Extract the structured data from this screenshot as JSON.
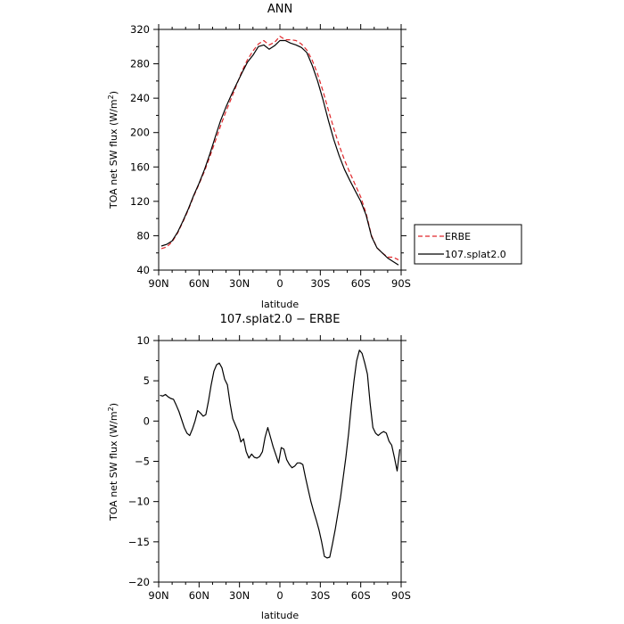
{
  "chart_data": [
    {
      "type": "line",
      "title": "ANN",
      "xlabel": "latitude",
      "ylabel": "TOA net SW flux (W/m²)",
      "xlim": [
        -90,
        90
      ],
      "ylim": [
        40,
        320
      ],
      "xticks": [
        -90,
        -60,
        -30,
        0,
        30,
        60,
        90
      ],
      "xtick_labels": [
        "90N",
        "60N",
        "30N",
        "0",
        "30S",
        "60S",
        "90S"
      ],
      "yticks": [
        40,
        80,
        120,
        160,
        200,
        240,
        280,
        320
      ],
      "ytick_labels": [
        "40",
        "80",
        "120",
        "160",
        "200",
        "240",
        "280",
        "320"
      ],
      "grid": false,
      "legend_position": "right-bottom-outside",
      "series": [
        {
          "name": "ERBE",
          "color": "#e0262a",
          "style": "dashed",
          "x": [
            -88,
            -84,
            -80,
            -76,
            -72,
            -68,
            -64,
            -60,
            -56,
            -52,
            -48,
            -44,
            -40,
            -36,
            -32,
            -28,
            -24,
            -20,
            -16,
            -12,
            -8,
            -4,
            0,
            4,
            8,
            12,
            16,
            20,
            24,
            28,
            32,
            36,
            40,
            44,
            48,
            52,
            56,
            60,
            64,
            68,
            72,
            76,
            80,
            84,
            88
          ],
          "y": [
            65,
            67,
            73,
            83,
            96,
            110,
            126,
            140,
            155,
            172,
            190,
            208,
            225,
            240,
            256,
            272,
            285,
            295,
            303,
            307,
            302,
            305,
            312,
            308,
            308,
            307,
            303,
            296,
            284,
            268,
            248,
            226,
            205,
            185,
            168,
            153,
            139,
            125,
            106,
            80,
            66,
            60,
            55,
            55,
            52
          ]
        },
        {
          "name": "107.splat2.0",
          "color": "#000000",
          "style": "solid",
          "x": [
            -88,
            -84,
            -80,
            -76,
            -72,
            -68,
            -64,
            -60,
            -56,
            -52,
            -48,
            -44,
            -40,
            -36,
            -32,
            -28,
            -24,
            -20,
            -16,
            -12,
            -8,
            -4,
            0,
            4,
            8,
            12,
            16,
            20,
            24,
            28,
            32,
            36,
            40,
            44,
            48,
            52,
            56,
            60,
            64,
            68,
            72,
            76,
            80,
            84,
            88
          ],
          "y": [
            68,
            70,
            74,
            84,
            97,
            111,
            127,
            141,
            157,
            175,
            195,
            214,
            230,
            244,
            257,
            270,
            282,
            290,
            300,
            302,
            297,
            301,
            307,
            307,
            304,
            302,
            299,
            293,
            278,
            260,
            238,
            214,
            192,
            173,
            157,
            144,
            132,
            120,
            104,
            79,
            66,
            60,
            54,
            50,
            46
          ]
        }
      ]
    },
    {
      "type": "line",
      "title": "107.splat2.0 − ERBE",
      "xlabel": "latitude",
      "ylabel": "TOA net SW flux (W/m²)",
      "xlim": [
        -90,
        90
      ],
      "ylim": [
        -20,
        10
      ],
      "xticks": [
        -90,
        -60,
        -30,
        0,
        30,
        60,
        90
      ],
      "xtick_labels": [
        "90N",
        "60N",
        "30N",
        "0",
        "30S",
        "60S",
        "90S"
      ],
      "yticks": [
        -20,
        -15,
        -10,
        -5,
        0,
        5,
        10
      ],
      "ytick_labels": [
        "−20",
        "−15",
        "−10",
        "−5",
        "0",
        "5",
        "10"
      ],
      "grid": false,
      "series": [
        {
          "color": "#000000",
          "style": "solid",
          "x": [
            -89,
            -87,
            -85,
            -83,
            -81,
            -79,
            -77,
            -75,
            -73,
            -71,
            -69,
            -67,
            -65,
            -63,
            -61,
            -59,
            -57,
            -55,
            -53,
            -51,
            -49,
            -47,
            -45,
            -43,
            -41,
            -39,
            -37,
            -35,
            -33,
            -31,
            -29,
            -27,
            -25,
            -23,
            -21,
            -19,
            -17,
            -15,
            -13,
            -11,
            -9,
            -7,
            -5,
            -3,
            -1,
            1,
            3,
            5,
            7,
            9,
            11,
            13,
            15,
            17,
            19,
            21,
            23,
            25,
            27,
            29,
            31,
            33,
            35,
            37,
            39,
            41,
            43,
            45,
            47,
            49,
            51,
            53,
            55,
            57,
            59,
            61,
            63,
            65,
            67,
            69,
            71,
            73,
            75,
            77,
            79,
            81,
            83,
            85,
            87,
            89
          ],
          "y": [
            3.2,
            3.1,
            3.3,
            3.0,
            2.8,
            2.7,
            2.0,
            1.2,
            0.2,
            -0.8,
            -1.5,
            -1.8,
            -1.0,
            0.0,
            1.3,
            1.0,
            0.6,
            0.8,
            2.5,
            4.5,
            6.2,
            7.0,
            7.2,
            6.6,
            5.2,
            4.5,
            2.2,
            0.3,
            -0.5,
            -1.3,
            -2.6,
            -2.2,
            -3.8,
            -4.6,
            -4.1,
            -4.5,
            -4.6,
            -4.4,
            -3.8,
            -2.0,
            -0.8,
            -2.0,
            -3.2,
            -4.2,
            -5.2,
            -3.3,
            -3.5,
            -4.8,
            -5.4,
            -5.8,
            -5.6,
            -5.2,
            -5.2,
            -5.4,
            -7.0,
            -8.5,
            -10.0,
            -11.2,
            -12.3,
            -13.5,
            -15.0,
            -16.8,
            -17.0,
            -16.9,
            -15.3,
            -13.5,
            -11.5,
            -9.5,
            -7.0,
            -4.5,
            -1.5,
            2.0,
            5.0,
            7.5,
            8.8,
            8.4,
            7.2,
            5.8,
            2.2,
            -0.8,
            -1.5,
            -1.8,
            -1.5,
            -1.3,
            -1.5,
            -2.5,
            -3.0,
            -4.5,
            -6.2,
            -3.5
          ]
        }
      ]
    }
  ]
}
